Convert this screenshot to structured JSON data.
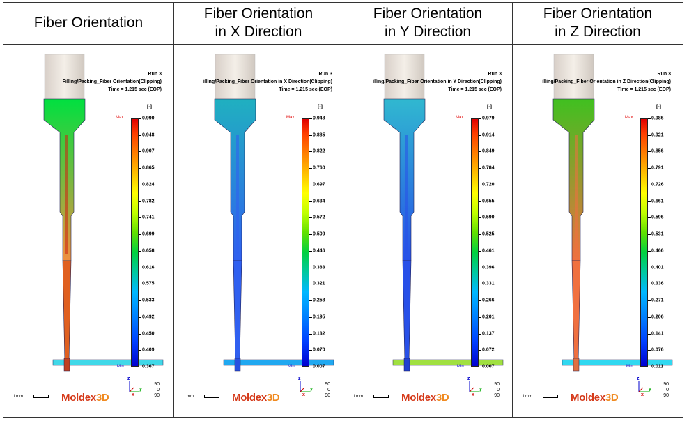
{
  "headers": [
    [
      "Fiber Orientation"
    ],
    [
      "Fiber Orientation",
      "in X Direction"
    ],
    [
      "Fiber Orientation",
      "in Y Direction"
    ],
    [
      "Fiber Orientation",
      "in Z Direction"
    ]
  ],
  "panels": [
    {
      "run": "Run 3",
      "result": "Filling/Packing_Fiber  Orientation(Clipping)",
      "time": "Time = 1.215 sec (EOP)",
      "unit": "[-]",
      "max_label": "Max",
      "min_label": "Min",
      "scale": [
        "0.990",
        "0.948",
        "0.907",
        "0.865",
        "0.824",
        "0.782",
        "0.741",
        "0.699",
        "0.658",
        "0.616",
        "0.575",
        "0.533",
        "0.492",
        "0.450",
        "0.409",
        "0.367"
      ],
      "colors": {
        "top": "#00e040",
        "neck": "#f09040",
        "stem": "#e06020",
        "gate": "#c04020",
        "runner": "#40d8e8",
        "core": "#d02010"
      }
    },
    {
      "run": "Run 3",
      "result": "illing/Packing_Fiber  Orientation  in X Direction(Clipping)",
      "time": "Time = 1.215 sec (EOP)",
      "unit": "[-]",
      "max_label": "Max",
      "min_label": "Min",
      "scale": [
        "0.948",
        "0.885",
        "0.822",
        "0.760",
        "0.697",
        "0.634",
        "0.572",
        "0.509",
        "0.446",
        "0.383",
        "0.321",
        "0.258",
        "0.195",
        "0.132",
        "0.070",
        "0.007"
      ],
      "colors": {
        "top": "#20b0c0",
        "neck": "#3060f0",
        "stem": "#3060f0",
        "gate": "#2850e0",
        "runner": "#20a8f0",
        "core": "#3060f0"
      }
    },
    {
      "run": "Run 3",
      "result": "illing/Packing_Fiber  Orientation  in Y Direction(Clipping)",
      "time": "Time = 1.215 sec (EOP)",
      "unit": "[-]",
      "max_label": "Max",
      "min_label": "Min",
      "scale": [
        "0.979",
        "0.914",
        "0.849",
        "0.784",
        "0.720",
        "0.655",
        "0.590",
        "0.525",
        "0.461",
        "0.396",
        "0.331",
        "0.266",
        "0.201",
        "0.137",
        "0.072",
        "0.007"
      ],
      "colors": {
        "top": "#30b8d0",
        "neck": "#2850e8",
        "stem": "#2850e8",
        "gate": "#2040d0",
        "runner": "#a0e040",
        "core": "#2850e8"
      }
    },
    {
      "run": "Run 3",
      "result": "illing/Packing_Fiber  Orientation  in Z Direction(Clipping)",
      "time": "Time = 1.215 sec (EOP)",
      "unit": "[-]",
      "max_label": "Max",
      "min_label": "Min",
      "scale": [
        "0.986",
        "0.921",
        "0.856",
        "0.791",
        "0.726",
        "0.661",
        "0.596",
        "0.531",
        "0.466",
        "0.401",
        "0.336",
        "0.271",
        "0.206",
        "0.141",
        "0.076",
        "0.011"
      ],
      "colors": {
        "top": "#40c020",
        "neck": "#f07040",
        "stem": "#f07040",
        "gate": "#e07040",
        "runner": "#30d8f0",
        "core": "#f07040"
      }
    }
  ],
  "footer": {
    "scale_unit": "l mm",
    "logo_main": "Moldex",
    "logo_3d": "3D",
    "axis_x": "x",
    "axis_y": "y",
    "axis_z": "z",
    "angles": [
      "90",
      "0",
      "90"
    ]
  }
}
